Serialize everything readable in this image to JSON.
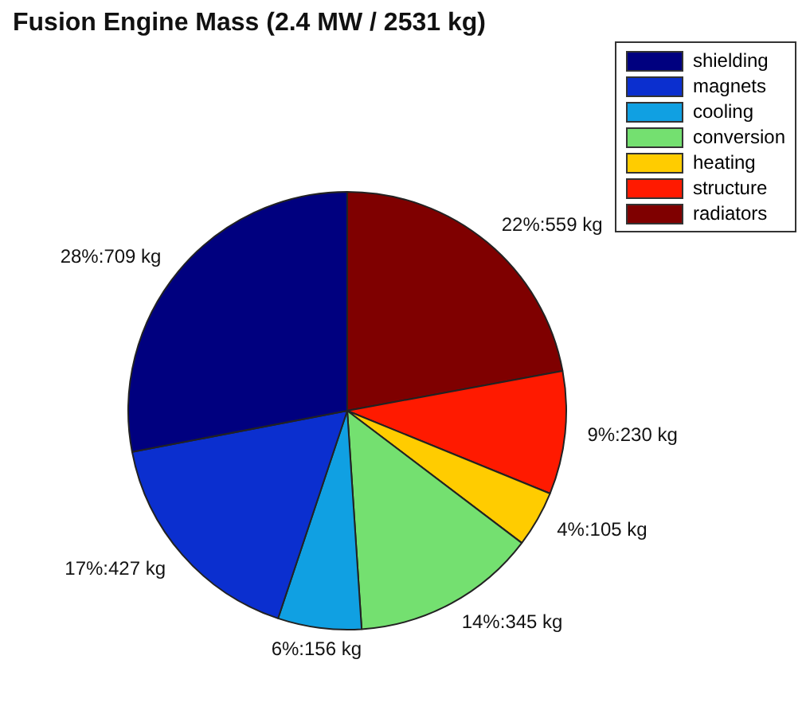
{
  "chart_data": {
    "type": "pie",
    "title": "Fusion Engine Mass (2.4 MW / 2531 kg)",
    "categories": [
      "shielding",
      "magnets",
      "cooling",
      "conversion",
      "heating",
      "structure",
      "radiators"
    ],
    "values": [
      709,
      427,
      156,
      345,
      105,
      230,
      559
    ],
    "colors": [
      "#00007f",
      "#0b2fcf",
      "#10a0e2",
      "#74e070",
      "#ffcc00",
      "#ff1a00",
      "#7f0000"
    ],
    "value_labels": [
      "28%:709 kg",
      "17%:427 kg",
      "6%:156 kg",
      "14%:345 kg",
      "4%:105 kg",
      "9%:230 kg",
      "22%:559 kg"
    ],
    "legend": "top right"
  }
}
